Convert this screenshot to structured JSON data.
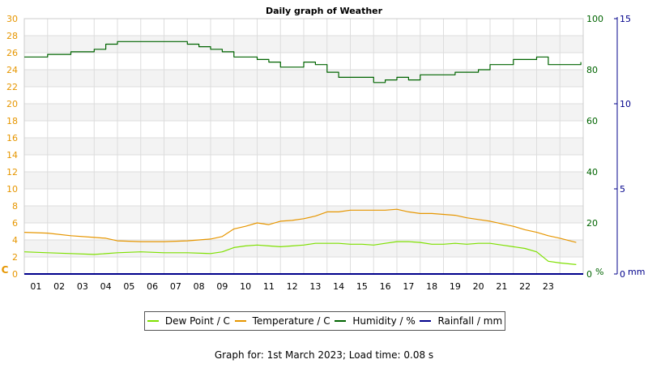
{
  "chart_data": {
    "type": "line",
    "title": "Daily graph of Weather",
    "x_tick_labels": [
      "01",
      "02",
      "03",
      "04",
      "05",
      "06",
      "07",
      "08",
      "09",
      "10",
      "11",
      "12",
      "13",
      "14",
      "15",
      "16",
      "17",
      "18",
      "19",
      "20",
      "21",
      "22",
      "23"
    ],
    "xlim": [
      0,
      24
    ],
    "left_axis": {
      "unit_label": "C",
      "ylim": [
        0,
        30
      ],
      "ticks": [
        0,
        2,
        4,
        6,
        8,
        10,
        12,
        14,
        16,
        18,
        20,
        22,
        24,
        26,
        28,
        30
      ],
      "color": "#e69600"
    },
    "humidity_axis": {
      "unit_label": "%",
      "ylim": [
        0,
        100
      ],
      "ticks": [
        0,
        20,
        40,
        60,
        80,
        100
      ],
      "color": "#006400"
    },
    "rain_axis": {
      "unit_label": "mm",
      "ylim": [
        0,
        15
      ],
      "ticks": [
        0,
        5,
        10,
        15
      ],
      "color": "#00008b"
    },
    "grid": true,
    "legend_placement": "bottom",
    "series": [
      {
        "name": "Dew Point / C",
        "color": "#7ee000",
        "axis": "left",
        "x": [
          0,
          1,
          2,
          3,
          4,
          5,
          6,
          7,
          8,
          8.5,
          9,
          9.5,
          10,
          10.5,
          11,
          11.5,
          12,
          12.5,
          13,
          13.5,
          14,
          14.5,
          15,
          15.5,
          16,
          16.5,
          17,
          17.5,
          18,
          18.5,
          19,
          19.5,
          20,
          20.5,
          21,
          21.5,
          22,
          22.5,
          23,
          23.7
        ],
        "y": [
          2.6,
          2.5,
          2.4,
          2.3,
          2.5,
          2.6,
          2.5,
          2.5,
          2.4,
          2.6,
          3.1,
          3.3,
          3.4,
          3.3,
          3.2,
          3.3,
          3.4,
          3.6,
          3.6,
          3.6,
          3.5,
          3.5,
          3.4,
          3.6,
          3.8,
          3.8,
          3.7,
          3.5,
          3.5,
          3.6,
          3.5,
          3.6,
          3.6,
          3.4,
          3.2,
          3.0,
          2.6,
          1.5,
          1.3,
          1.1
        ]
      },
      {
        "name": "Temperature / C",
        "color": "#e69600",
        "axis": "left",
        "x": [
          0,
          1,
          2,
          3,
          3.5,
          4,
          5,
          6,
          7,
          7.5,
          8,
          8.5,
          9,
          9.5,
          10,
          10.5,
          11,
          11.5,
          12,
          12.5,
          13,
          13.5,
          14,
          14.5,
          15,
          15.5,
          16,
          16.5,
          17,
          17.5,
          18,
          18.5,
          19,
          19.5,
          20,
          20.5,
          21,
          21.5,
          22,
          22.5,
          23,
          23.7
        ],
        "y": [
          4.9,
          4.8,
          4.5,
          4.3,
          4.2,
          3.9,
          3.8,
          3.8,
          3.9,
          4.0,
          4.1,
          4.4,
          5.3,
          5.6,
          6.0,
          5.8,
          6.2,
          6.3,
          6.5,
          6.8,
          7.3,
          7.3,
          7.5,
          7.5,
          7.5,
          7.5,
          7.6,
          7.3,
          7.1,
          7.1,
          7.0,
          6.9,
          6.6,
          6.4,
          6.2,
          5.9,
          5.6,
          5.2,
          4.9,
          4.5,
          4.2,
          3.7
        ]
      },
      {
        "name": "Humidity / %",
        "color": "#006400",
        "axis": "humidity",
        "x": [
          0,
          0.5,
          1,
          1.5,
          2,
          2.5,
          3,
          3.5,
          4,
          4.5,
          5,
          5.5,
          6,
          6.5,
          7,
          7.5,
          8,
          8.5,
          9,
          9.5,
          10,
          10.5,
          11,
          11.5,
          12,
          12.5,
          13,
          13.5,
          14,
          14.5,
          15,
          15.5,
          16,
          16.5,
          17,
          17.5,
          18,
          18.5,
          19,
          19.5,
          20,
          20.5,
          21,
          21.5,
          22,
          22.5,
          23,
          23.5,
          23.9
        ],
        "y": [
          85,
          85,
          86,
          86,
          87,
          87,
          88,
          90,
          91,
          91,
          91,
          91,
          91,
          91,
          90,
          89,
          88,
          87,
          85,
          85,
          84,
          83,
          81,
          81,
          83,
          82,
          79,
          77,
          77,
          77,
          75,
          76,
          77,
          76,
          78,
          78,
          78,
          79,
          79,
          80,
          82,
          82,
          84,
          84,
          85,
          82,
          82,
          82,
          83
        ]
      },
      {
        "name": "Rainfall / mm",
        "color": "#00008b",
        "axis": "rain",
        "x": [
          0,
          24
        ],
        "y": [
          0,
          0
        ]
      }
    ]
  },
  "footer": {
    "text": "Graph for: 1st March 2023; Load time: 0.08 s"
  }
}
